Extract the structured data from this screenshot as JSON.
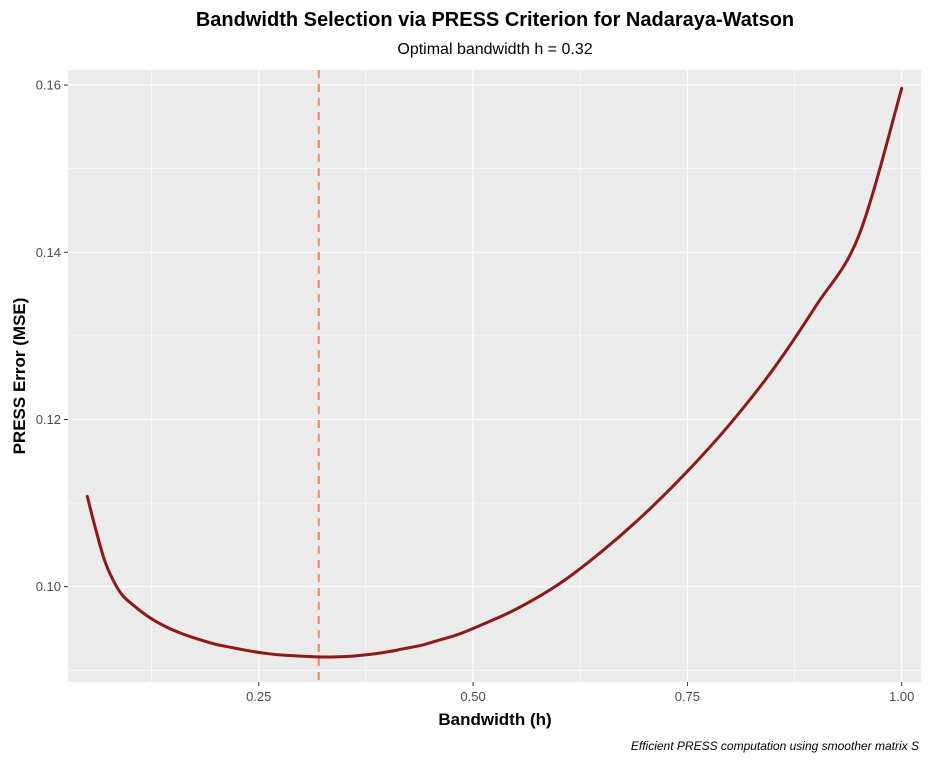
{
  "chart_data": {
    "type": "line",
    "title": "Bandwidth Selection via PRESS Criterion for Nadaraya-Watson",
    "subtitle": "Optimal bandwidth h = 0.32",
    "xlabel": "Bandwidth (h)",
    "ylabel": "PRESS Error (MSE)",
    "caption": "Efficient PRESS computation using smoother matrix S",
    "xlim": [
      0.0275,
      1.0225
    ],
    "ylim": [
      0.0886,
      0.1618
    ],
    "x_ticks": [
      0.25,
      0.5,
      0.75,
      1.0
    ],
    "x_tick_labels": [
      "0.25",
      "0.50",
      "0.75",
      "1.00"
    ],
    "y_ticks": [
      0.1,
      0.12,
      0.14,
      0.16
    ],
    "y_tick_labels": [
      "0.10",
      "0.12",
      "0.14",
      "0.16"
    ],
    "grid": true,
    "background": "#ebebeb",
    "series": [
      {
        "color": "#8b1a1a",
        "x": [
          0.05,
          0.06,
          0.07,
          0.08,
          0.09,
          0.1,
          0.12,
          0.14,
          0.16,
          0.18,
          0.2,
          0.22,
          0.24,
          0.26,
          0.28,
          0.3,
          0.32,
          0.34,
          0.36,
          0.38,
          0.4,
          0.42,
          0.44,
          0.46,
          0.48,
          0.5,
          0.55,
          0.6,
          0.65,
          0.7,
          0.75,
          0.8,
          0.85,
          0.9,
          0.95,
          1.0
        ],
        "y": [
          0.1108,
          0.1068,
          0.1032,
          0.1008,
          0.0991,
          0.0981,
          0.0965,
          0.0953,
          0.0944,
          0.0937,
          0.0931,
          0.0927,
          0.0923,
          0.092,
          0.0918,
          0.0917,
          0.0916,
          0.0916,
          0.0917,
          0.0919,
          0.0922,
          0.0926,
          0.093,
          0.0936,
          0.0942,
          0.095,
          0.0973,
          0.1003,
          0.1042,
          0.1087,
          0.1138,
          0.1195,
          0.126,
          0.1336,
          0.142,
          0.1596
        ]
      }
    ],
    "vline": {
      "x": 0.32,
      "color": "#e8896a",
      "style": "dashed"
    }
  }
}
